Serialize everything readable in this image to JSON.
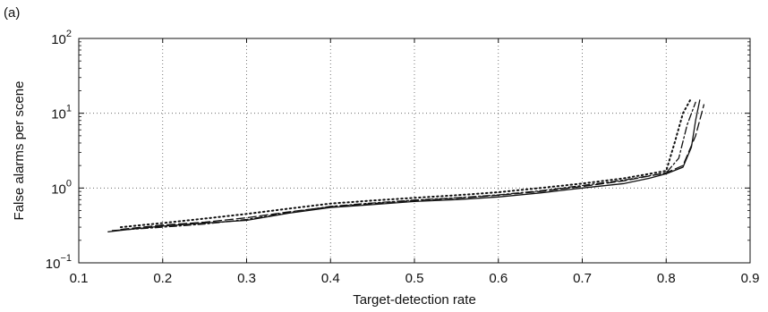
{
  "chart_data": {
    "type": "line",
    "panel_label": "(a)",
    "title": "",
    "xlabel": "Target-detection rate",
    "ylabel": "False alarms per scene",
    "xlim": [
      0.1,
      0.9
    ],
    "ylim": [
      0.1,
      100
    ],
    "y_scale": "log",
    "grid": true,
    "legend": "none",
    "x_ticks": [
      {
        "value": 0.1,
        "label": "0.1"
      },
      {
        "value": 0.2,
        "label": "0.2"
      },
      {
        "value": 0.3,
        "label": "0.3"
      },
      {
        "value": 0.4,
        "label": "0.4"
      },
      {
        "value": 0.5,
        "label": "0.5"
      },
      {
        "value": 0.6,
        "label": "0.6"
      },
      {
        "value": 0.7,
        "label": "0.7"
      },
      {
        "value": 0.8,
        "label": "0.8"
      },
      {
        "value": 0.9,
        "label": "0.9"
      }
    ],
    "y_ticks": [
      {
        "value": 0.1,
        "base": "10",
        "exp": "−1"
      },
      {
        "value": 1,
        "base": "10",
        "exp": "0"
      },
      {
        "value": 10,
        "base": "10",
        "exp": "1"
      },
      {
        "value": 100,
        "base": "10",
        "exp": "2"
      }
    ],
    "series": [
      {
        "style": "solid",
        "color": "#111111",
        "x": [
          0.135,
          0.16,
          0.2,
          0.25,
          0.3,
          0.35,
          0.4,
          0.45,
          0.5,
          0.55,
          0.6,
          0.65,
          0.7,
          0.75,
          0.78,
          0.8,
          0.82,
          0.83,
          0.835,
          0.84
        ],
        "y": [
          0.26,
          0.28,
          0.31,
          0.34,
          0.37,
          0.46,
          0.55,
          0.6,
          0.66,
          0.7,
          0.76,
          0.86,
          1.0,
          1.15,
          1.35,
          1.55,
          1.9,
          3.5,
          8.0,
          15.0
        ]
      },
      {
        "style": "dashed",
        "color": "#111111",
        "x": [
          0.15,
          0.2,
          0.25,
          0.3,
          0.35,
          0.4,
          0.45,
          0.5,
          0.55,
          0.6,
          0.65,
          0.7,
          0.75,
          0.8,
          0.82,
          0.835,
          0.845
        ],
        "y": [
          0.28,
          0.32,
          0.35,
          0.4,
          0.48,
          0.56,
          0.62,
          0.68,
          0.73,
          0.8,
          0.9,
          1.05,
          1.25,
          1.6,
          2.0,
          5.0,
          13.0
        ]
      },
      {
        "style": "dotted",
        "color": "#111111",
        "x": [
          0.15,
          0.2,
          0.25,
          0.3,
          0.35,
          0.4,
          0.45,
          0.5,
          0.55,
          0.6,
          0.65,
          0.7,
          0.75,
          0.8,
          0.81,
          0.82,
          0.83
        ],
        "y": [
          0.3,
          0.34,
          0.39,
          0.45,
          0.53,
          0.62,
          0.68,
          0.74,
          0.8,
          0.88,
          1.0,
          1.15,
          1.35,
          1.7,
          4.0,
          10.0,
          16.0
        ]
      },
      {
        "style": "dashdot",
        "color": "#111111",
        "x": [
          0.14,
          0.2,
          0.25,
          0.3,
          0.35,
          0.4,
          0.45,
          0.5,
          0.55,
          0.6,
          0.65,
          0.7,
          0.75,
          0.8,
          0.815,
          0.825,
          0.835
        ],
        "y": [
          0.27,
          0.3,
          0.33,
          0.38,
          0.47,
          0.57,
          0.63,
          0.69,
          0.74,
          0.81,
          0.92,
          1.08,
          1.28,
          1.6,
          2.5,
          7.0,
          14.0
        ]
      }
    ]
  }
}
